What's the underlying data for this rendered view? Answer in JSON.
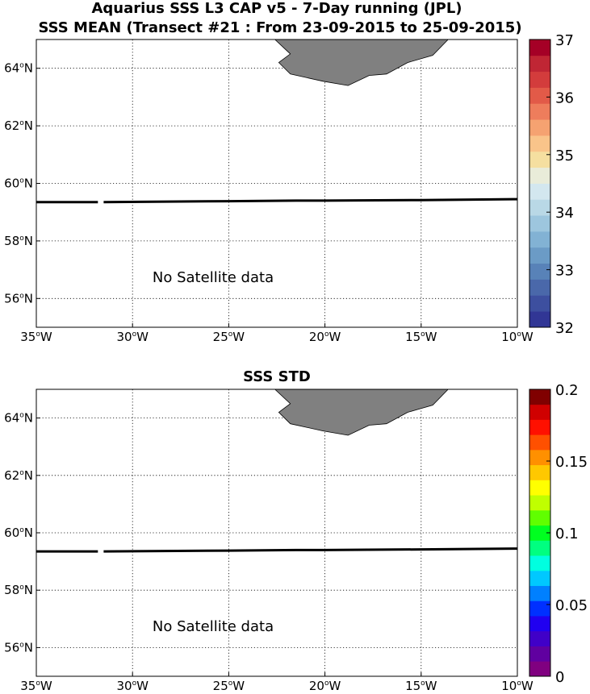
{
  "figure": {
    "title_line1": "Aquarius SSS L3 CAP v5 - 7-Day running (JPL)",
    "title_line2": "SSS MEAN (Transect #21 : From 23-09-2015 to 25-09-2015)"
  },
  "map_extent": {
    "lon": [
      -35,
      -10
    ],
    "lat": [
      55,
      65
    ]
  },
  "panels": [
    {
      "id": "mean",
      "title": "",
      "no_data_text": "No Satellite data",
      "x_tick_labels": [
        "35",
        "30",
        "25",
        "20",
        "15",
        "10"
      ],
      "x_tick_hemisphere": "W",
      "y_tick_labels": [
        "64",
        "62",
        "60",
        "58",
        "56"
      ],
      "y_tick_hemisphere": "N",
      "colorbar": {
        "min": 32,
        "max": 37,
        "tick_labels": [
          "32",
          "33",
          "34",
          "35",
          "36",
          "37"
        ],
        "colors": [
          "#313695",
          "#3d4f9f",
          "#4a68aa",
          "#5882b8",
          "#6b9bc6",
          "#82b2d4",
          "#9dc6de",
          "#b9d8e6",
          "#d3e7ef",
          "#e9ecd9",
          "#f5dfa0",
          "#f9c48a",
          "#f5a271",
          "#ee7d5c",
          "#e25a48",
          "#d33c3c",
          "#c02634",
          "#a50026"
        ]
      }
    },
    {
      "id": "std",
      "title": "SSS STD",
      "no_data_text": "No Satellite data",
      "x_tick_labels": [
        "35",
        "30",
        "25",
        "20",
        "15",
        "10"
      ],
      "x_tick_hemisphere": "W",
      "y_tick_labels": [
        "64",
        "62",
        "60",
        "58",
        "56"
      ],
      "y_tick_hemisphere": "N",
      "colorbar": {
        "min": 0,
        "max": 0.2,
        "tick_labels": [
          "0",
          "0.05",
          "0.1",
          "0.15",
          "0.2"
        ],
        "colors": [
          "#800080",
          "#6000a0",
          "#4000c8",
          "#2000f0",
          "#0030ff",
          "#0080ff",
          "#00c8ff",
          "#00ffe0",
          "#00ff80",
          "#00ff20",
          "#60ff00",
          "#c0ff00",
          "#ffff00",
          "#ffc800",
          "#ff9000",
          "#ff5000",
          "#ff1000",
          "#d00000",
          "#800000"
        ]
      }
    }
  ],
  "land_color": "#808080",
  "transect": {
    "lon": [
      -35,
      -31.8,
      -31.5,
      -25,
      -21.5,
      -20,
      -15,
      -10
    ],
    "lat": [
      59.35,
      59.35,
      59.35,
      59.38,
      59.4,
      59.4,
      59.42,
      59.45
    ],
    "gap_lon": [
      -31.8,
      -31.5
    ]
  },
  "iceland_outline": {
    "lon": [
      -23.9,
      -22.6,
      -21.8,
      -22.4,
      -21.8,
      -20.1,
      -18.8,
      -17.7,
      -16.8,
      -15.7,
      -14.4,
      -13.6,
      -23.9
    ],
    "lat": [
      65.0,
      65.0,
      64.5,
      64.2,
      63.8,
      63.55,
      63.4,
      63.75,
      63.8,
      64.2,
      64.45,
      65.0,
      65.0
    ]
  }
}
